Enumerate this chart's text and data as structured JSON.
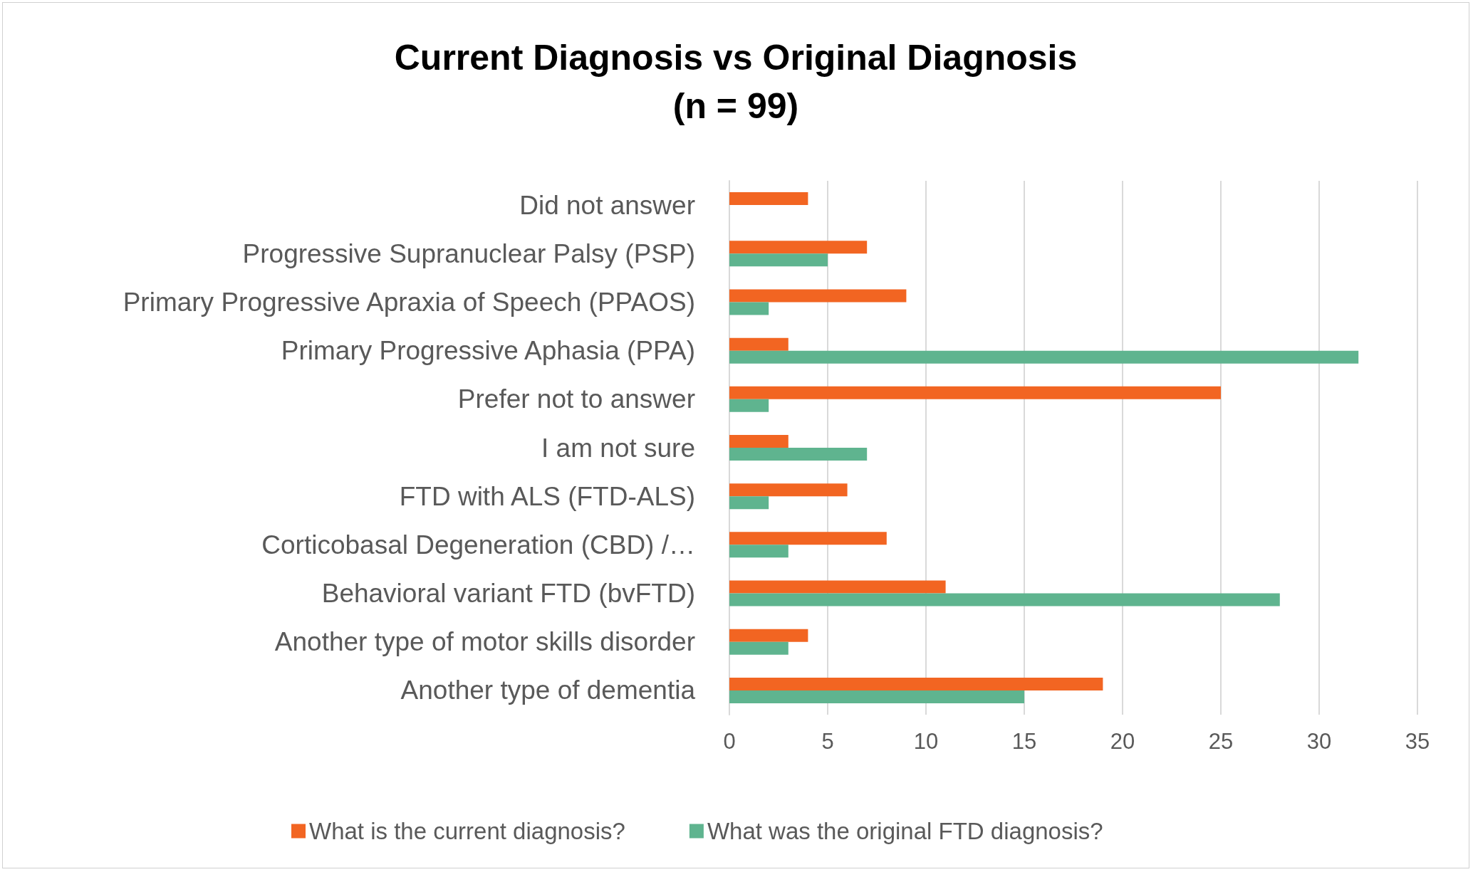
{
  "chart_data": {
    "type": "bar",
    "orientation": "horizontal",
    "title": "Current Diagnosis vs Original Diagnosis\n(n = 99)",
    "categories": [
      "Did not answer",
      "Progressive Supranuclear Palsy (PSP)",
      "Primary Progressive Apraxia of Speech (PPAOS)",
      "Primary Progressive Aphasia (PPA)",
      "Prefer not to answer",
      "I am not sure",
      "FTD with ALS (FTD-ALS)",
      "Corticobasal Degeneration (CBD) /…",
      "Behavioral variant FTD (bvFTD)",
      "Another type of motor skills disorder",
      "Another type of dementia"
    ],
    "series": [
      {
        "name": "What is the current diagnosis?",
        "color": "#f26522",
        "values": [
          4,
          7,
          9,
          3,
          25,
          3,
          6,
          8,
          11,
          4,
          19
        ]
      },
      {
        "name": "What was the original FTD diagnosis?",
        "color": "#5fb48f",
        "values": [
          null,
          5,
          2,
          32,
          2,
          7,
          2,
          3,
          28,
          3,
          15
        ]
      }
    ],
    "xlim": [
      0,
      35
    ],
    "xticks": [
      0,
      5,
      10,
      15,
      20,
      25,
      30,
      35
    ],
    "grid": "x",
    "legend": "bottom"
  }
}
